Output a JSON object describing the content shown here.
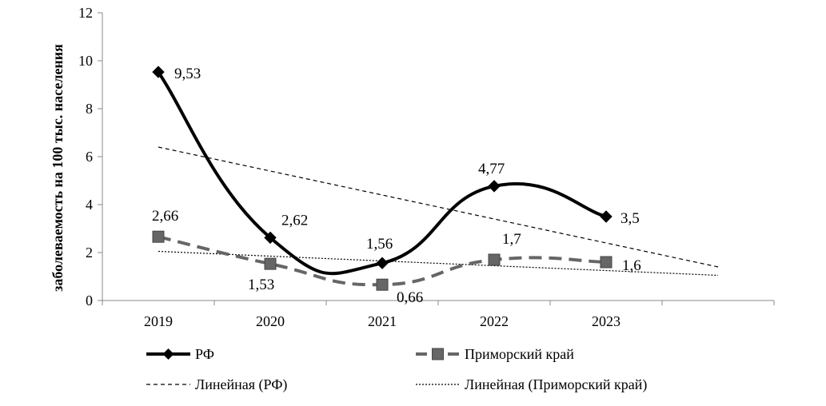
{
  "chart_data": {
    "type": "line",
    "categories": [
      "2019",
      "2020",
      "2021",
      "2022",
      "2023"
    ],
    "ylabel": "заболеваемость на 100 тыс. населения",
    "ylim": [
      0,
      12
    ],
    "yticks": [
      "0",
      "2",
      "4",
      "6",
      "8",
      "10",
      "12"
    ],
    "grid": false,
    "legend_position": "bottom",
    "series": [
      {
        "name": "РФ",
        "values": [
          9.53,
          2.62,
          1.56,
          4.77,
          3.5
        ],
        "labels": [
          "9,53",
          "2,62",
          "1,56",
          "4,77",
          "3,5"
        ],
        "style": "solid-smooth",
        "marker": "diamond",
        "color": "#000000"
      },
      {
        "name": "Приморский край",
        "values": [
          2.66,
          1.53,
          0.66,
          1.7,
          1.6
        ],
        "labels": [
          "2,66",
          "1,53",
          "0,66",
          "1,7",
          "1,6"
        ],
        "style": "dashed-smooth",
        "marker": "square",
        "color": "#666666"
      }
    ],
    "trendlines": [
      {
        "name": "Линейная (РФ)",
        "start": 6.4,
        "end": 1.4,
        "style": "dashed",
        "color": "#000000"
      },
      {
        "name": "Линейная (Приморский край)",
        "start": 2.05,
        "end": 1.05,
        "style": "dotted",
        "color": "#000000"
      }
    ]
  }
}
